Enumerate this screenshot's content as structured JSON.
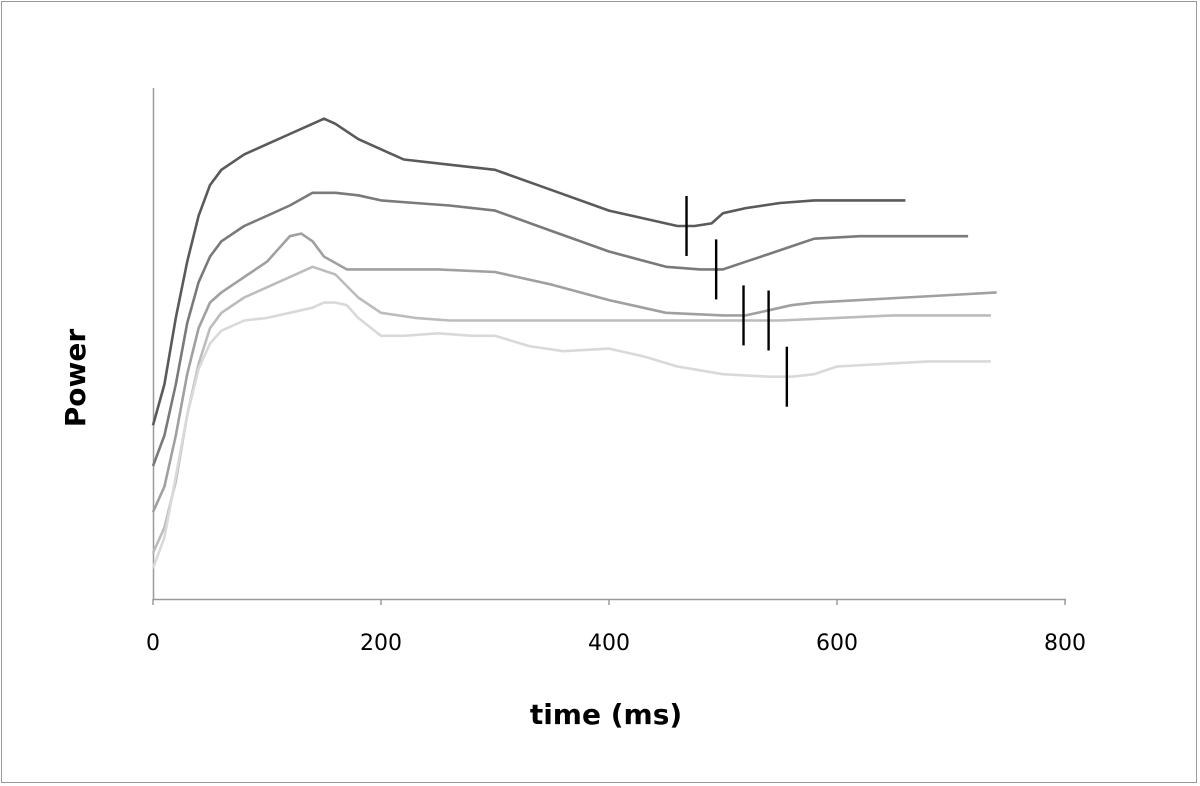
{
  "chart_data": {
    "type": "line",
    "title": "",
    "xlabel": "time (ms)",
    "ylabel": "Power",
    "xlim": [
      0,
      800
    ],
    "ylim": [
      0,
      100
    ],
    "x_ticks": [
      0,
      200,
      400,
      600,
      800
    ],
    "x_tick_labels": [
      "0",
      "200",
      "400",
      "600",
      "800"
    ],
    "y_ticks_shown": false,
    "grid": false,
    "legend": "none",
    "series": [
      {
        "color": "#5a5a5a",
        "x": [
          0,
          10,
          20,
          30,
          40,
          50,
          60,
          80,
          100,
          120,
          140,
          150,
          160,
          180,
          200,
          220,
          260,
          300,
          350,
          400,
          440,
          460,
          475,
          490,
          500,
          520,
          550,
          580,
          600,
          640,
          660
        ],
        "values": [
          34,
          42,
          55,
          66,
          75,
          81,
          84,
          87,
          89,
          91,
          93,
          94,
          93,
          90,
          88,
          86,
          85,
          84,
          80,
          76,
          74,
          73,
          73,
          73.5,
          75.5,
          76.5,
          77.5,
          78,
          78,
          78,
          78
        ],
        "marker_x": 468
      },
      {
        "color": "#7a7a7a",
        "x": [
          0,
          10,
          20,
          30,
          40,
          50,
          60,
          80,
          100,
          120,
          140,
          160,
          180,
          200,
          230,
          260,
          300,
          350,
          400,
          450,
          480,
          500,
          520,
          540,
          560,
          580,
          620,
          660,
          700,
          715
        ],
        "values": [
          26,
          32,
          42,
          54,
          62,
          67,
          70,
          73,
          75,
          77,
          79.5,
          79.5,
          79,
          78,
          77.5,
          77,
          76,
          72,
          68,
          65,
          64.5,
          64.5,
          66,
          67.5,
          69,
          70.5,
          71,
          71,
          71,
          71
        ],
        "marker_x": 494
      },
      {
        "color": "#a0a0a0",
        "x": [
          0,
          10,
          20,
          30,
          40,
          50,
          60,
          80,
          100,
          120,
          130,
          140,
          150,
          170,
          190,
          200,
          250,
          300,
          350,
          400,
          450,
          500,
          520,
          540,
          560,
          580,
          620,
          660,
          700,
          740
        ],
        "values": [
          17,
          22,
          32,
          44,
          53,
          58,
          60,
          63,
          66,
          71,
          71.5,
          70,
          67,
          64.5,
          64.5,
          64.5,
          64.5,
          64,
          61.5,
          58.5,
          56,
          55.5,
          55.5,
          56.5,
          57.5,
          58,
          58.5,
          59,
          59.5,
          60
        ],
        "marker_x": 518
      },
      {
        "color": "#bcbcbc",
        "x": [
          0,
          10,
          20,
          30,
          40,
          50,
          60,
          80,
          100,
          120,
          140,
          160,
          180,
          200,
          230,
          260,
          300,
          350,
          400,
          450,
          500,
          550,
          600,
          650,
          700,
          735
        ],
        "values": [
          9,
          14,
          23,
          36,
          46,
          53,
          56,
          59,
          61,
          63,
          65,
          63.5,
          59,
          56,
          55,
          54.5,
          54.5,
          54.5,
          54.5,
          54.5,
          54.5,
          54.5,
          55,
          55.5,
          55.5,
          55.5
        ],
        "marker_x": 540
      },
      {
        "color": "#d9d9d9",
        "x": [
          0,
          10,
          20,
          30,
          40,
          50,
          60,
          80,
          100,
          120,
          140,
          150,
          160,
          170,
          180,
          200,
          220,
          250,
          280,
          300,
          330,
          360,
          400,
          430,
          460,
          500,
          540,
          560,
          580,
          600,
          640,
          680,
          700,
          735
        ],
        "values": [
          6,
          12,
          24,
          36,
          45,
          50,
          52.5,
          54.5,
          55,
          56,
          57,
          58,
          58,
          57.5,
          55,
          51.5,
          51.5,
          52,
          51.5,
          51.5,
          49.5,
          48.5,
          49,
          47.5,
          45.5,
          44,
          43.5,
          43.5,
          44,
          45.5,
          46,
          46.5,
          46.5,
          46.5
        ],
        "marker_x": 556
      }
    ]
  }
}
